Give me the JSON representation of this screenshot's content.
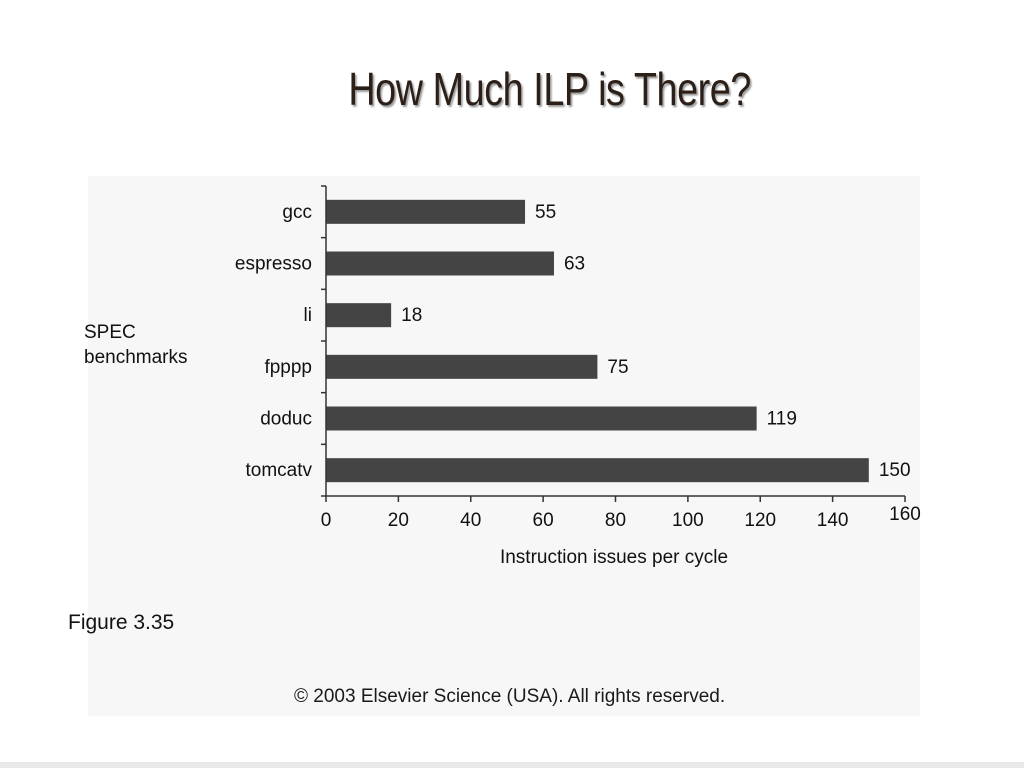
{
  "slide": {
    "title": "How Much ILP is There?",
    "caption": "Figure 3.35",
    "copyright": "© 2003 Elsevier Science (USA). All rights reserved."
  },
  "colors": {
    "bar": "#444444",
    "axis": "#333333",
    "text": "#111111"
  },
  "chart_data": {
    "type": "bar",
    "orientation": "horizontal",
    "categories": [
      "gcc",
      "espresso",
      "li",
      "fpppp",
      "doduc",
      "tomcatv"
    ],
    "values": [
      55,
      63,
      18,
      75,
      119,
      150
    ],
    "data_labels": [
      "55",
      "63",
      "18",
      "75",
      "119",
      "150"
    ],
    "ylabel_lines": [
      "SPEC",
      "benchmarks"
    ],
    "xlabel": "Instruction issues per cycle",
    "xlim": [
      0,
      160
    ],
    "xticks": [
      0,
      20,
      40,
      60,
      80,
      100,
      120,
      140,
      160
    ],
    "grid": false
  }
}
